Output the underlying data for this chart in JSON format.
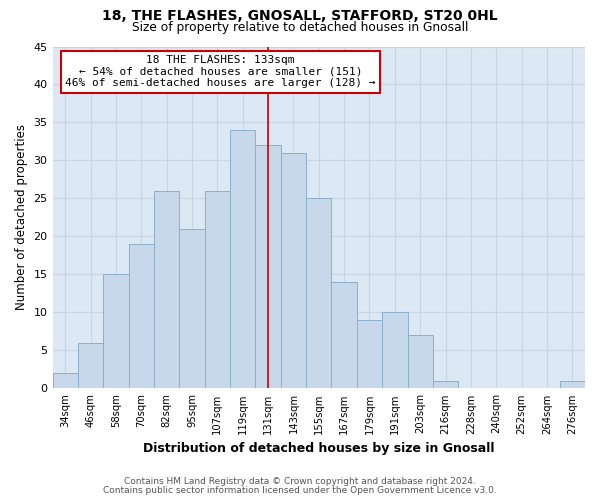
{
  "title": "18, THE FLASHES, GNOSALL, STAFFORD, ST20 0HL",
  "subtitle": "Size of property relative to detached houses in Gnosall",
  "xlabel": "Distribution of detached houses by size in Gnosall",
  "ylabel": "Number of detached properties",
  "footer_line1": "Contains HM Land Registry data © Crown copyright and database right 2024.",
  "footer_line2": "Contains public sector information licensed under the Open Government Licence v3.0.",
  "bar_labels": [
    "34sqm",
    "46sqm",
    "58sqm",
    "70sqm",
    "82sqm",
    "95sqm",
    "107sqm",
    "119sqm",
    "131sqm",
    "143sqm",
    "155sqm",
    "167sqm",
    "179sqm",
    "191sqm",
    "203sqm",
    "216sqm",
    "228sqm",
    "240sqm",
    "252sqm",
    "264sqm",
    "276sqm"
  ],
  "bar_values": [
    2,
    6,
    15,
    19,
    26,
    21,
    26,
    34,
    32,
    31,
    25,
    14,
    9,
    10,
    7,
    1,
    0,
    0,
    0,
    0,
    1
  ],
  "bar_color": "#c8d8eb",
  "bar_edge_color": "#8ab0cc",
  "grid_color": "#c8d4e0",
  "background_color": "#ffffff",
  "plot_bg_color": "#dce8f4",
  "annotation_box_text_line1": "18 THE FLASHES: 133sqm",
  "annotation_box_text_line2": "← 54% of detached houses are smaller (151)",
  "annotation_box_text_line3": "46% of semi-detached houses are larger (128) →",
  "vline_index": 8,
  "vline_color": "#cc0000",
  "annotation_box_edge_color": "#cc0000",
  "annotation_box_bg": "#ffffff",
  "ylim": [
    0,
    45
  ],
  "yticks": [
    0,
    5,
    10,
    15,
    20,
    25,
    30,
    35,
    40,
    45
  ]
}
